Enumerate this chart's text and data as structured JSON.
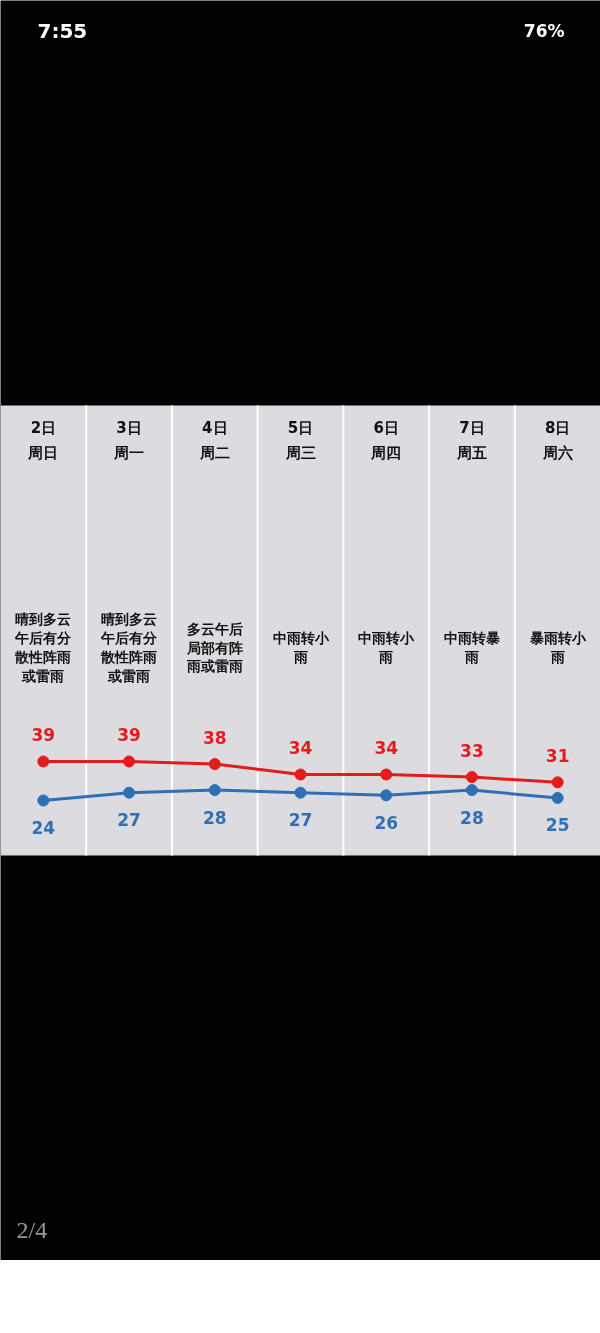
{
  "chart_data": {
    "type": "line",
    "categories": [
      "2日周日",
      "3日周一",
      "4日周二",
      "5日周三",
      "6日周四",
      "7日周五",
      "8日周六"
    ],
    "series": [
      {
        "color": "#e31b1b",
        "values": [
          39,
          39,
          38,
          34,
          34,
          33,
          31
        ]
      },
      {
        "color": "#2f6fb5",
        "values": [
          24,
          27,
          28,
          27,
          26,
          28,
          25
        ]
      }
    ],
    "marker": "circle",
    "line_style": "solid",
    "data_labels": true,
    "annotations": [
      "晴到多云午后有分散性阵雨或雷雨",
      "晴到多云午后有分散性阵雨或雷雨",
      "多云午后局部有阵雨或雷雨",
      "中雨转小雨",
      "中雨转小雨",
      "中雨转暴雨",
      "暴雨转小雨",
      "7:55",
      "76%",
      "2/4"
    ]
  }
}
